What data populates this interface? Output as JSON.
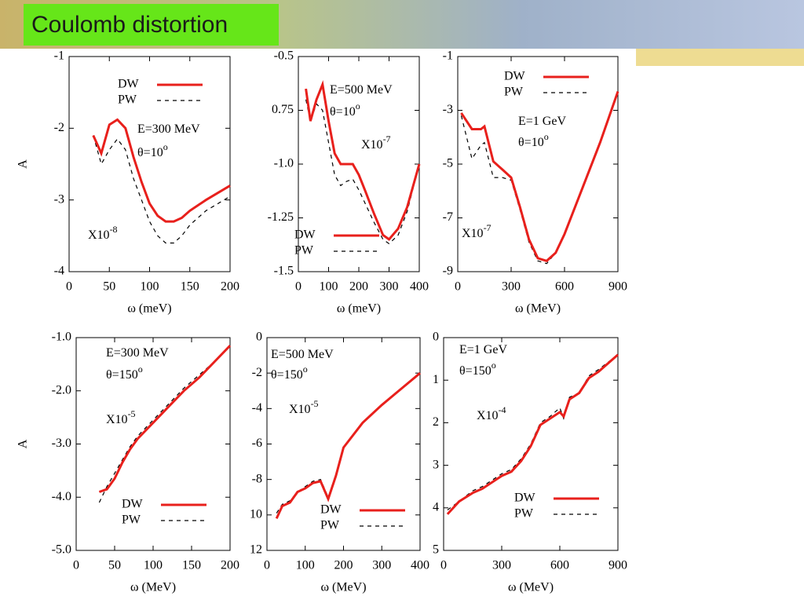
{
  "title": "Coulomb distortion",
  "chart_data": [
    {
      "type": "line",
      "x_label": "ω (meV)",
      "y_label": "A",
      "xlim": [
        0,
        200
      ],
      "ylim": [
        -4,
        -1
      ],
      "xticks": [
        0,
        50,
        100,
        150,
        200
      ],
      "yticks": [
        -1,
        -2,
        -3,
        -4
      ],
      "annotations": [
        {
          "text": "E=300 MeV"
        },
        {
          "text": "θ=10",
          "sup": "o"
        },
        {
          "text": "X10",
          "sup": "-8"
        }
      ],
      "x": [
        30,
        40,
        50,
        60,
        70,
        80,
        90,
        100,
        110,
        120,
        130,
        140,
        150,
        170,
        200
      ],
      "series": [
        {
          "name": "DW",
          "color": "#e8201c",
          "values": [
            -2.1,
            -2.35,
            -1.95,
            -1.88,
            -2.0,
            -2.4,
            -2.75,
            -3.05,
            -3.22,
            -3.3,
            -3.3,
            -3.25,
            -3.15,
            -3.0,
            -2.8
          ]
        },
        {
          "name": "PW",
          "color": "#000000",
          "dashed": true,
          "values": [
            -2.1,
            -2.5,
            -2.3,
            -2.15,
            -2.3,
            -2.7,
            -3.0,
            -3.3,
            -3.5,
            -3.6,
            -3.6,
            -3.5,
            -3.35,
            -3.15,
            -2.95
          ]
        }
      ]
    },
    {
      "type": "line",
      "x_label": "ω (meV)",
      "xlim": [
        0,
        400
      ],
      "ylim": [
        -1.5,
        -0.5
      ],
      "xticks": [
        0,
        100,
        200,
        300,
        400
      ],
      "yticks": [
        -0.5,
        {
          "value": -0.75,
          "label": "0.75"
        },
        {
          "value": -1,
          "label": "-1.0"
        },
        -1.25,
        -1.5
      ],
      "annotations": [
        {
          "text": "E=500 MeV"
        },
        {
          "text": "θ=10",
          "sup": "o"
        },
        {
          "text": "X10",
          "sup": "-7"
        }
      ],
      "x": [
        25,
        40,
        60,
        80,
        100,
        120,
        140,
        160,
        180,
        200,
        220,
        250,
        280,
        300,
        330,
        360,
        400
      ],
      "series": [
        {
          "name": "DW",
          "color": "#e8201c",
          "values": [
            -0.65,
            -0.8,
            -0.7,
            -0.63,
            -0.8,
            -0.95,
            -1.0,
            -1.0,
            -1.0,
            -1.05,
            -1.12,
            -1.23,
            -1.33,
            -1.35,
            -1.3,
            -1.2,
            -1.0
          ]
        },
        {
          "name": "PW",
          "color": "#000000",
          "dashed": true,
          "values": [
            -0.7,
            -0.8,
            -0.72,
            -0.75,
            -0.9,
            -1.05,
            -1.1,
            -1.08,
            -1.07,
            -1.12,
            -1.18,
            -1.27,
            -1.35,
            -1.37,
            -1.33,
            -1.22,
            -1.0
          ]
        }
      ]
    },
    {
      "type": "line",
      "x_label": "ω (MeV)",
      "xlim": [
        0,
        900
      ],
      "ylim": [
        -9,
        -1
      ],
      "xticks": [
        0,
        300,
        600,
        900
      ],
      "yticks": [
        -1,
        -3,
        -5,
        -7,
        -9
      ],
      "annotations": [
        {
          "text": "E=1 GeV"
        },
        {
          "text": "θ=10",
          "sup": "o"
        },
        {
          "text": "X10",
          "sup": "-7"
        }
      ],
      "x": [
        20,
        80,
        130,
        150,
        200,
        250,
        300,
        350,
        400,
        450,
        500,
        550,
        600,
        700,
        800,
        900
      ],
      "series": [
        {
          "name": "DW",
          "color": "#e8201c",
          "values": [
            -3.1,
            -3.7,
            -3.7,
            -3.6,
            -4.9,
            -5.2,
            -5.5,
            -6.6,
            -7.8,
            -8.5,
            -8.6,
            -8.3,
            -7.6,
            -5.9,
            -4.2,
            -2.3
          ]
        },
        {
          "name": "PW",
          "color": "#000000",
          "dashed": true,
          "values": [
            -3.2,
            -4.8,
            -4.3,
            -4.2,
            -5.5,
            -5.5,
            -5.6,
            -6.7,
            -7.9,
            -8.6,
            -8.7,
            -8.3,
            -7.6,
            -5.9,
            -4.2,
            -2.3
          ]
        }
      ]
    },
    {
      "type": "line",
      "x_label": "ω (MeV)",
      "y_label": "A",
      "xlim": [
        0,
        200
      ],
      "ylim": [
        -5,
        -1
      ],
      "xticks": [
        0,
        50,
        100,
        150,
        200
      ],
      "yticks": [
        {
          "value": -1,
          "label": "-1.0"
        },
        {
          "value": -2,
          "label": "-2.0"
        },
        {
          "value": -3,
          "label": "-3.0"
        },
        {
          "value": -4,
          "label": "-4.0"
        },
        {
          "value": -5,
          "label": "-5.0"
        }
      ],
      "annotations": [
        {
          "text": "E=300 MeV"
        },
        {
          "text": "θ=150",
          "sup": "o"
        },
        {
          "text": "X10",
          "sup": "-5"
        }
      ],
      "x": [
        30,
        40,
        50,
        60,
        70,
        80,
        100,
        120,
        140,
        160,
        180,
        200
      ],
      "series": [
        {
          "name": "DW",
          "color": "#e8201c",
          "values": [
            -3.9,
            -3.85,
            -3.65,
            -3.35,
            -3.1,
            -2.9,
            -2.6,
            -2.3,
            -2.0,
            -1.75,
            -1.45,
            -1.15
          ]
        },
        {
          "name": "PW",
          "color": "#000000",
          "dashed": true,
          "values": [
            -4.1,
            -3.8,
            -3.55,
            -3.3,
            -3.05,
            -2.85,
            -2.55,
            -2.25,
            -1.95,
            -1.7,
            -1.45,
            -1.15
          ]
        }
      ]
    },
    {
      "type": "line",
      "x_label": "ω (MeV)",
      "xlim": [
        0,
        400
      ],
      "ylim": [
        -12,
        0
      ],
      "xticks": [
        0,
        100,
        200,
        300,
        400
      ],
      "yticks": [
        0,
        -2,
        -4,
        -6,
        -8,
        {
          "value": -10,
          "label": "10"
        },
        {
          "value": -12,
          "label": "12"
        }
      ],
      "annotations": [
        {
          "text": "E=500 MeV"
        },
        {
          "text": "θ=150",
          "sup": "o"
        },
        {
          "text": "X10",
          "sup": "-5"
        }
      ],
      "x": [
        25,
        40,
        60,
        80,
        100,
        120,
        140,
        160,
        180,
        200,
        250,
        300,
        350,
        400
      ],
      "series": [
        {
          "name": "DW",
          "color": "#e8201c",
          "values": [
            -10.2,
            -9.5,
            -9.3,
            -8.7,
            -8.5,
            -8.2,
            -8.1,
            -9.1,
            -7.8,
            -6.2,
            -4.8,
            -3.8,
            -2.9,
            -2.0
          ]
        },
        {
          "name": "PW",
          "color": "#000000",
          "dashed": true,
          "values": [
            -9.9,
            -9.4,
            -9.2,
            -8.7,
            -8.4,
            -8.1,
            -8.0,
            -9.0,
            -7.7,
            -6.2,
            -4.8,
            -3.8,
            -2.9,
            -2.0
          ]
        }
      ]
    },
    {
      "type": "line",
      "x_label": "ω (MeV)",
      "xlim": [
        0,
        900
      ],
      "ylim": [
        -5,
        0
      ],
      "xticks": [
        0,
        300,
        600,
        900
      ],
      "yticks": [
        0,
        {
          "value": -1,
          "label": "1"
        },
        {
          "value": -2,
          "label": "2"
        },
        {
          "value": -3,
          "label": "3"
        },
        {
          "value": -4,
          "label": "4"
        },
        {
          "value": -5,
          "label": "5"
        }
      ],
      "annotations": [
        {
          "text": "E=1 GeV"
        },
        {
          "text": "θ=150",
          "sup": "o"
        },
        {
          "text": "X10",
          "sup": "-4"
        }
      ],
      "x": [
        20,
        80,
        150,
        200,
        250,
        300,
        350,
        400,
        450,
        500,
        550,
        600,
        620,
        650,
        700,
        750,
        800,
        900
      ],
      "series": [
        {
          "name": "DW",
          "color": "#e8201c",
          "values": [
            -4.15,
            -3.85,
            -3.65,
            -3.55,
            -3.4,
            -3.25,
            -3.15,
            -2.9,
            -2.55,
            -2.05,
            -1.9,
            -1.75,
            -1.85,
            -1.45,
            -1.3,
            -0.95,
            -0.8,
            -0.4
          ]
        },
        {
          "name": "PW",
          "color": "#000000",
          "dashed": true,
          "values": [
            -4.05,
            -3.85,
            -3.6,
            -3.5,
            -3.35,
            -3.2,
            -3.1,
            -2.85,
            -2.5,
            -2.0,
            -1.85,
            -1.65,
            -1.9,
            -1.4,
            -1.3,
            -0.9,
            -0.75,
            -0.4
          ]
        }
      ]
    }
  ]
}
